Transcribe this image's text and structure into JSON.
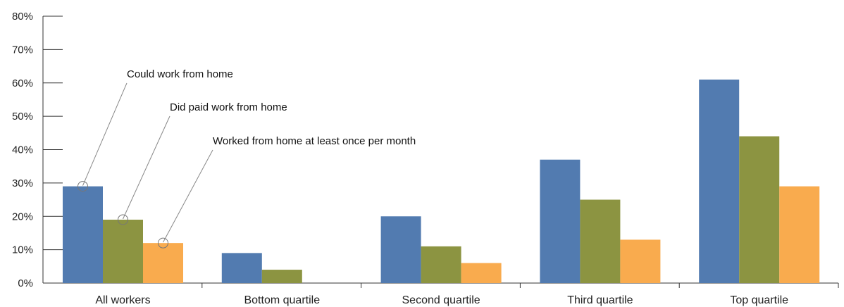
{
  "chart_data": {
    "type": "bar",
    "categories": [
      "All workers",
      "Bottom quartile",
      "Second quartile",
      "Third quartile",
      "Top quartile"
    ],
    "series": [
      {
        "name": "Could work from home",
        "values": [
          29,
          9,
          20,
          37,
          61
        ],
        "color": "#527bb0"
      },
      {
        "name": "Did paid work from home",
        "values": [
          19,
          4,
          11,
          25,
          44
        ],
        "color": "#8c9441"
      },
      {
        "name": "Worked from home at least once per month",
        "values": [
          12,
          0,
          6,
          13,
          29
        ],
        "color": "#f9ab4e"
      }
    ],
    "yticks": [
      "0%",
      "10%",
      "20%",
      "30%",
      "40%",
      "50%",
      "60%",
      "70%",
      "80%"
    ],
    "ylim": [
      0,
      80
    ],
    "title": "",
    "xlabel": "",
    "ylabel": "",
    "grid": false,
    "legend": "callouts with leader lines on the first category"
  }
}
